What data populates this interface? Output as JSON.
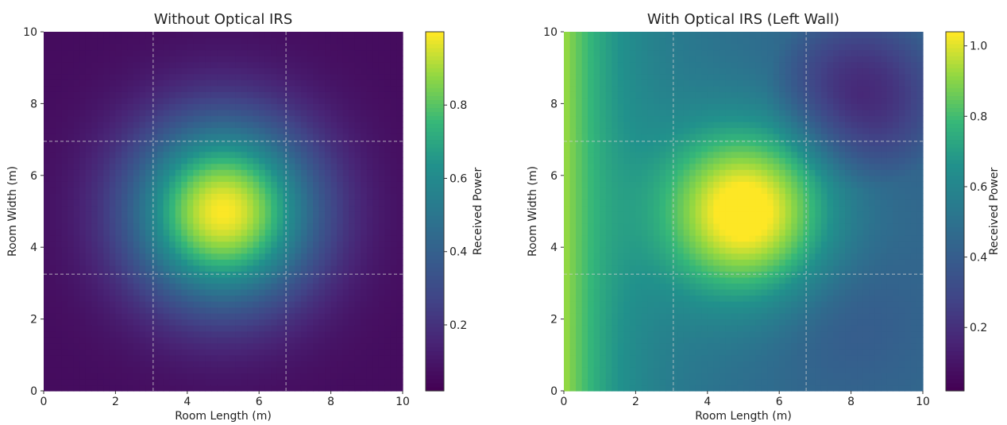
{
  "chart_data": [
    {
      "type": "heatmap",
      "title": "Without Optical IRS",
      "xlabel": "Room Length (m)",
      "ylabel": "Room Width (m)",
      "xlim": [
        0,
        10
      ],
      "ylim": [
        0,
        10
      ],
      "xticks": [
        "0",
        "2",
        "4",
        "6",
        "8",
        "10"
      ],
      "yticks": [
        "0",
        "2",
        "4",
        "6",
        "8",
        "10"
      ],
      "colorbar_label": "Received Power",
      "colorbar_ticks": [
        "0.2",
        "0.4",
        "0.6",
        "0.8"
      ],
      "colorbar_range": [
        0.02,
        1.0
      ],
      "colormap": "viridis",
      "peak": {
        "x": 5.0,
        "y": 5.0,
        "value": 1.0
      },
      "grid_x": [
        3.05,
        6.75
      ],
      "grid_y": [
        3.25,
        6.95
      ],
      "grid": true
    },
    {
      "type": "heatmap",
      "title": "With Optical IRS (Left Wall)",
      "xlabel": "Room Length (m)",
      "ylabel": "Room Width (m)",
      "xlim": [
        0,
        10
      ],
      "ylim": [
        0,
        10
      ],
      "xticks": [
        "0",
        "2",
        "4",
        "6",
        "8",
        "10"
      ],
      "yticks": [
        "0",
        "2",
        "4",
        "6",
        "8",
        "10"
      ],
      "colorbar_label": "Received Power",
      "colorbar_ticks": [
        "0.2",
        "0.4",
        "0.6",
        "0.8",
        "1.0"
      ],
      "colorbar_range": [
        0.02,
        1.04
      ],
      "colormap": "viridis",
      "peak": {
        "x": 5.0,
        "y": 5.0,
        "value": 1.0
      },
      "irs_wall": "left",
      "grid_x": [
        3.05,
        6.75
      ],
      "grid_y": [
        3.25,
        6.95
      ],
      "grid": true
    }
  ]
}
